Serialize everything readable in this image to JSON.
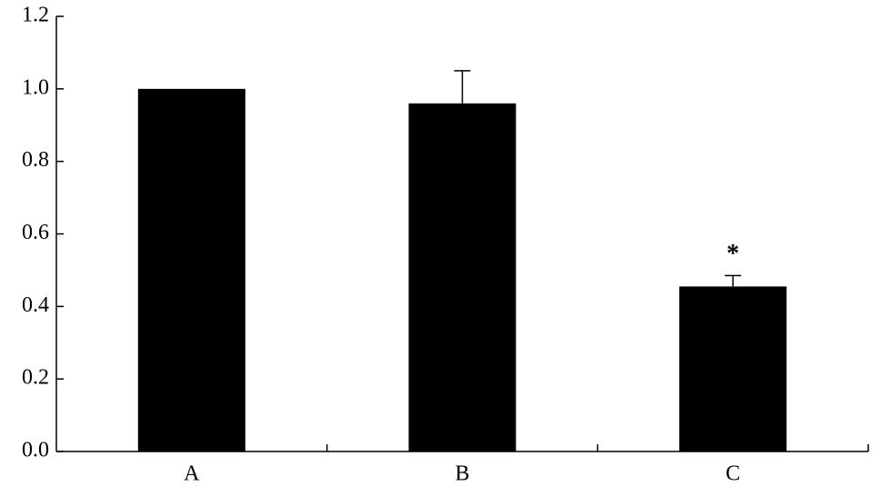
{
  "chart_data": {
    "type": "bar",
    "categories": [
      "A",
      "B",
      "C"
    ],
    "values": [
      1.0,
      0.96,
      0.455
    ],
    "errors": [
      0,
      0.09,
      0.03
    ],
    "significance": [
      null,
      null,
      "*"
    ],
    "color": "#000000",
    "ylim": [
      0,
      1.2
    ],
    "yticks": [
      {
        "value": 0,
        "label": "0.0"
      },
      0.2,
      0.4,
      0.6,
      0.8,
      {
        "value": 1,
        "label": "1.0"
      },
      1.2
    ],
    "grid": false
  }
}
